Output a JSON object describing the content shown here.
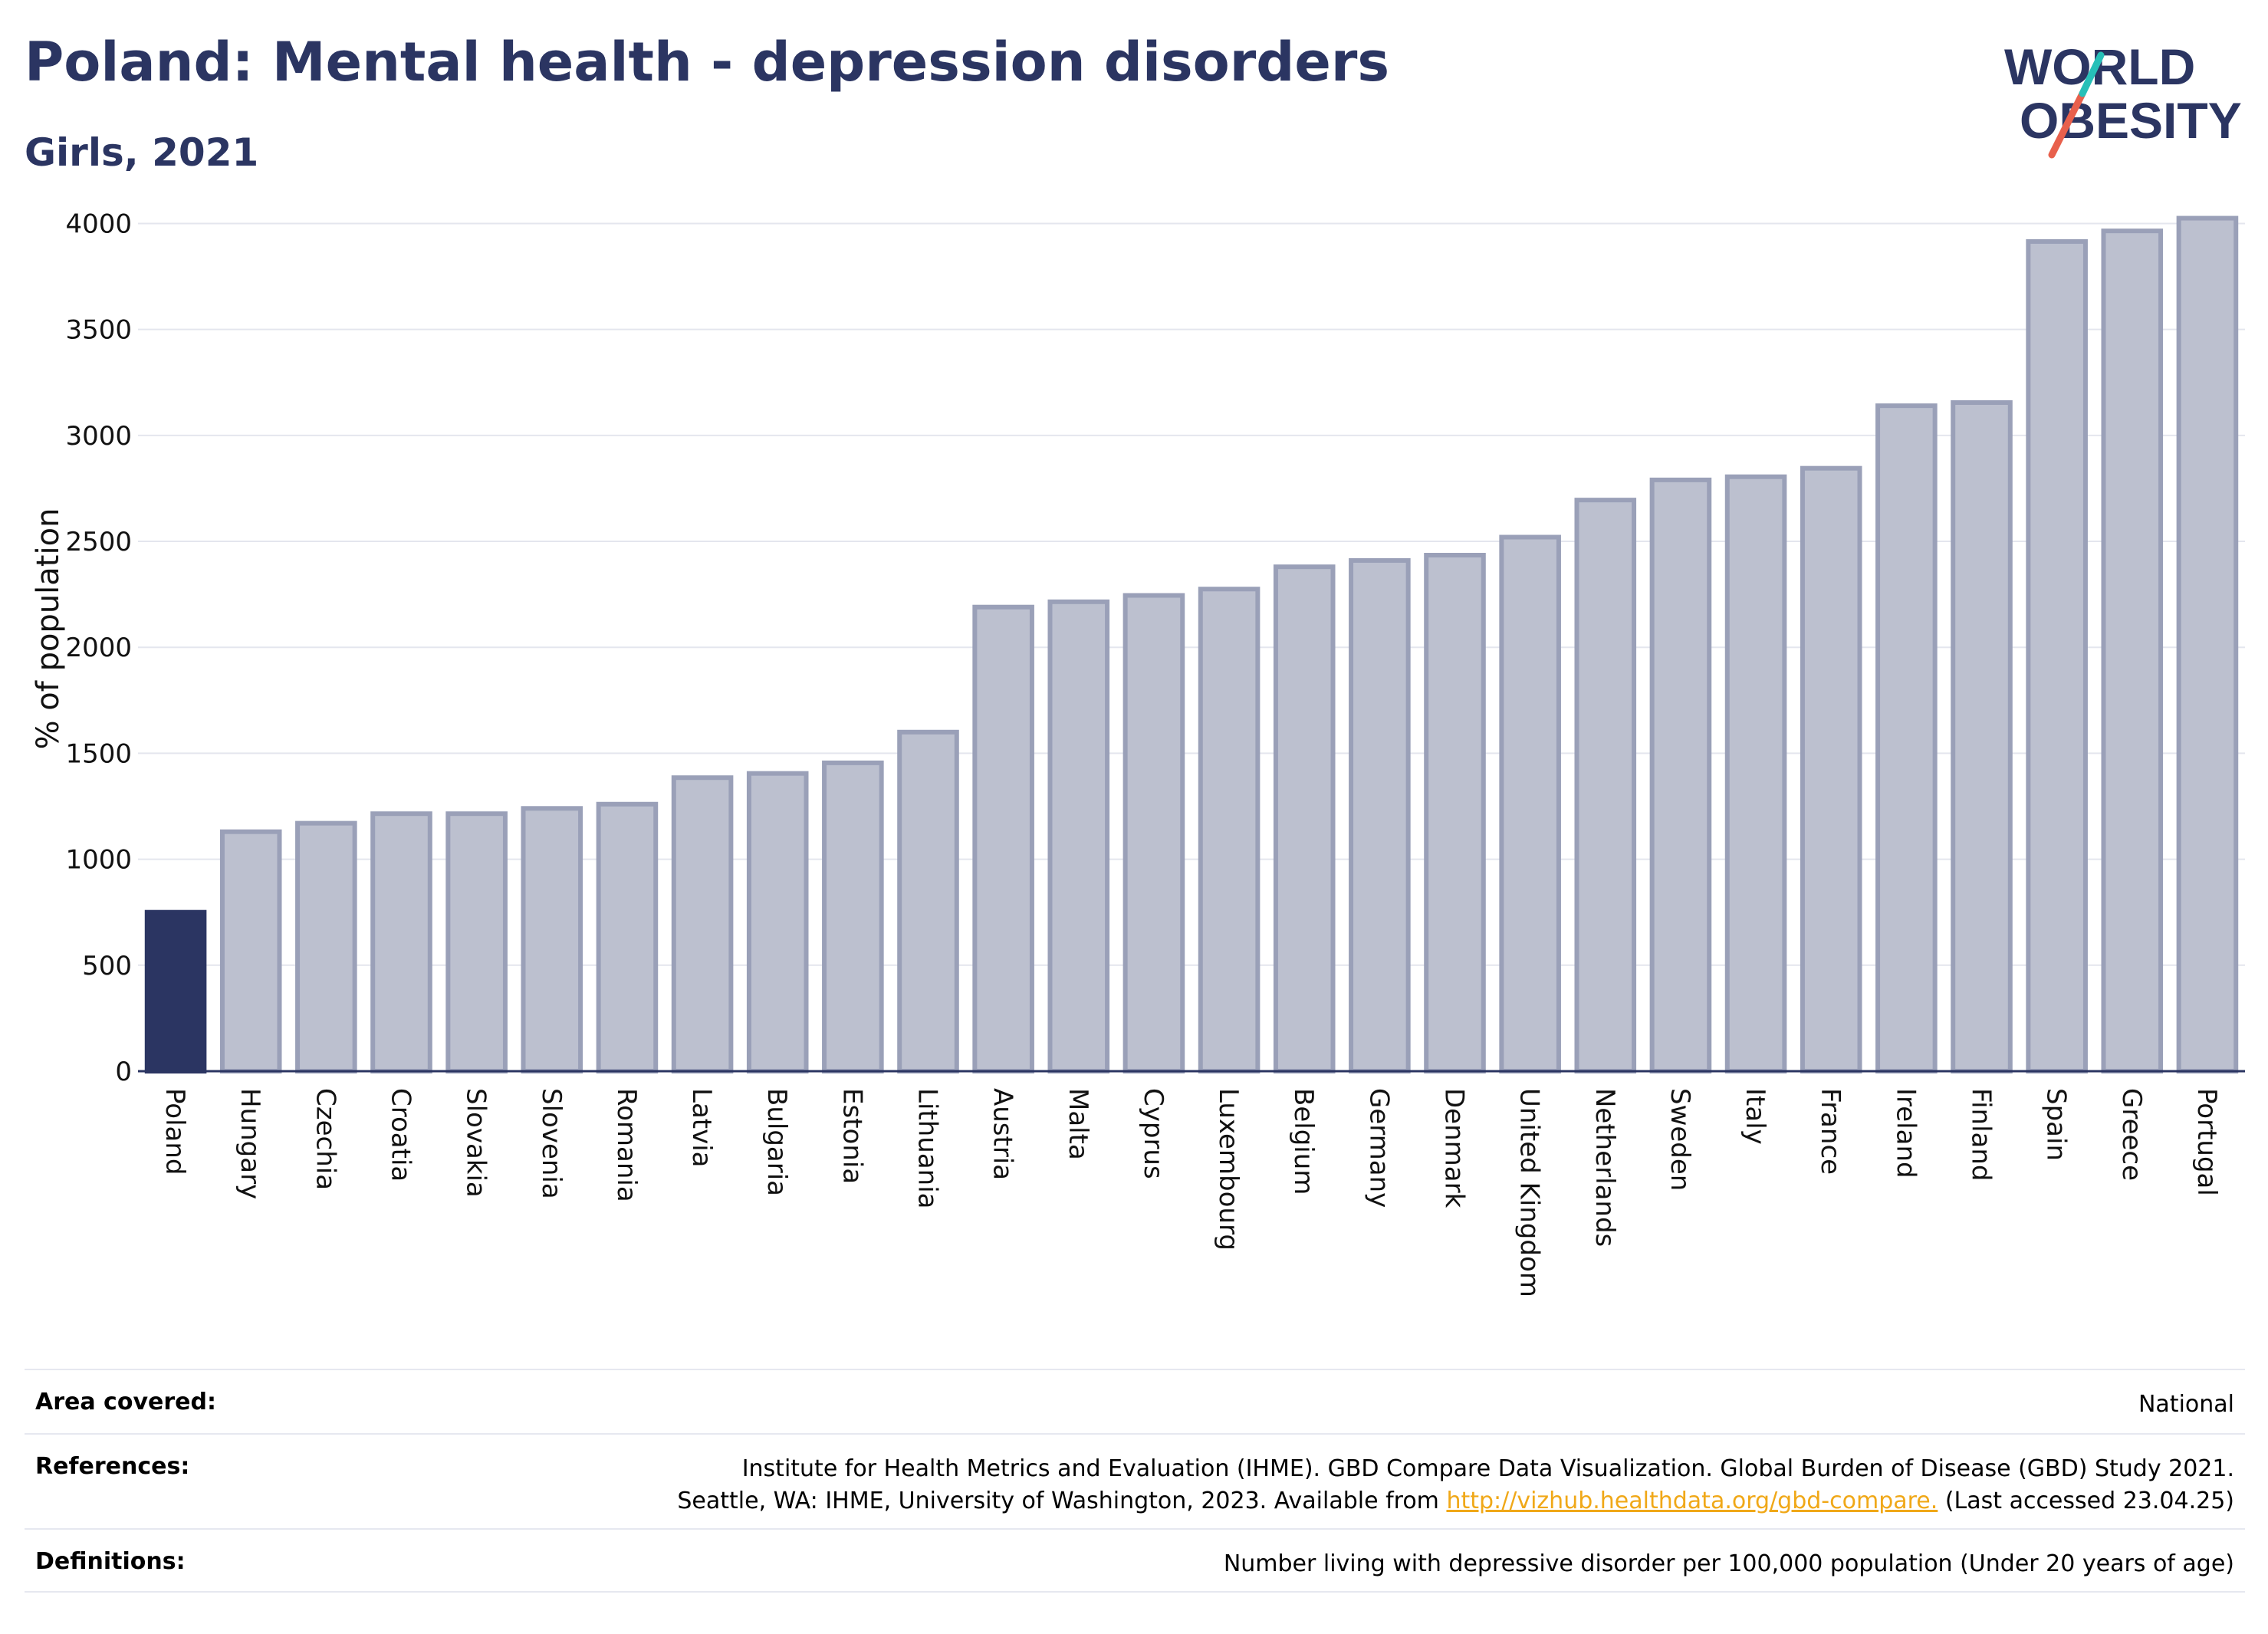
{
  "header": {
    "title": "Poland: Mental health - depression disorders",
    "subtitle": "Girls, 2021"
  },
  "logo": {
    "line1": "WORLD",
    "line2": "OBESITY",
    "colors": {
      "text": "#2b3562",
      "slash_red": "#e8604c",
      "slash_teal": "#27c0b8"
    }
  },
  "chart_data": {
    "type": "bar",
    "ylabel": "% of population",
    "ylim": [
      0,
      4150
    ],
    "yticks": [
      0,
      500,
      1000,
      1500,
      2000,
      2500,
      3000,
      3500,
      4000
    ],
    "grid": true,
    "categories": [
      "Poland",
      "Hungary",
      "Czechia",
      "Croatia",
      "Slovakia",
      "Slovenia",
      "Romania",
      "Latvia",
      "Bulgaria",
      "Estonia",
      "Lithuania",
      "Austria",
      "Malta",
      "Cyprus",
      "Luxembourg",
      "Belgium",
      "Germany",
      "Denmark",
      "United Kingdom",
      "Netherlands",
      "Sweden",
      "Italy",
      "France",
      "Ireland",
      "Finland",
      "Spain",
      "Greece",
      "Portugal"
    ],
    "values": [
      750,
      1130,
      1170,
      1215,
      1215,
      1240,
      1260,
      1385,
      1405,
      1455,
      1600,
      2190,
      2215,
      2245,
      2275,
      2380,
      2410,
      2435,
      2520,
      2695,
      2790,
      2805,
      2845,
      3140,
      3155,
      3915,
      3965,
      4025
    ],
    "highlight": "Poland",
    "colors": {
      "highlight": "#2b3562",
      "other_fill": "#bcc0cf",
      "other_stroke": "#9aa0b8"
    }
  },
  "meta": {
    "area_label": "Area covered:",
    "area_value": "National",
    "references_label": "References:",
    "references_line1": "Institute for Health Metrics and Evaluation (IHME). GBD Compare Data Visualization. Global Burden of Disease (GBD) Study 2021.",
    "references_line2_prefix": "Seattle, WA: IHME, University of Washington, 2023. Available from ",
    "references_link": "http://vizhub.healthdata.org/gbd-compare.",
    "references_line2_suffix": " (Last accessed 23.04.25)",
    "definitions_label": "Definitions:",
    "definitions_value": "Number living with depressive disorder per 100,000 population (Under 20 years of age)"
  }
}
